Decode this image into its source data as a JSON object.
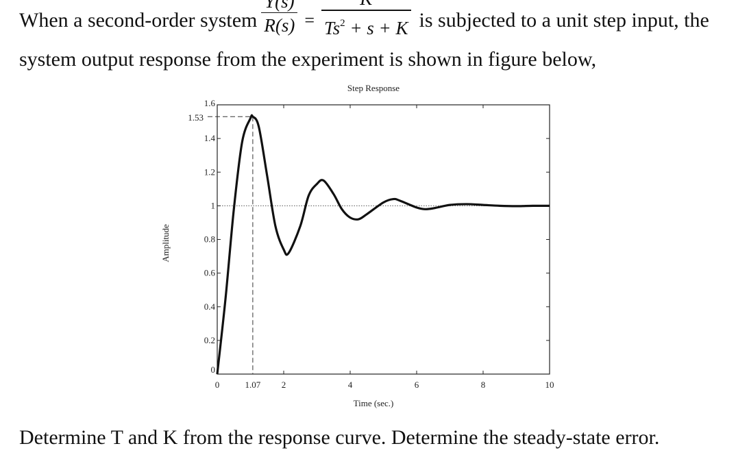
{
  "question": {
    "line1_prefix": "When a second-order system",
    "tf_lhs_num": "Y(s)",
    "tf_lhs_den": "R(s)",
    "equals": "=",
    "tf_rhs_num": "K",
    "tf_rhs_den_a": "Ts",
    "tf_rhs_den_exp": "2",
    "tf_rhs_den_b": "+ s + K",
    "line1_suffix": "is subjected to a unit step input, the",
    "line2": "system output response from the experiment is shown in figure below,",
    "line3": "Determine T and K from the response curve. Determine the steady-state error."
  },
  "chart_data": {
    "type": "line",
    "title": "Step Response",
    "xlabel": "Time (sec.)",
    "ylabel": "Amplitude",
    "xlim": [
      0,
      10
    ],
    "ylim": [
      0,
      1.6
    ],
    "xticks": [
      0,
      1.07,
      2,
      4,
      6,
      8,
      10
    ],
    "xtick_labels": [
      "0",
      "1.07",
      "2",
      "4",
      "6",
      "8",
      "10"
    ],
    "yticks": [
      0,
      0.2,
      0.4,
      0.6,
      0.8,
      1,
      1.2,
      1.4,
      1.53,
      1.6
    ],
    "ytick_labels": [
      "0",
      "0.2",
      "0.4",
      "0.6",
      "0.8",
      "1",
      "1.2",
      "1.4",
      "1.53",
      "1.6"
    ],
    "peak": {
      "x": 1.07,
      "y": 1.53
    },
    "steady_state": 1,
    "series": [
      {
        "x": [
          0,
          0.25,
          0.5,
          0.75,
          1.0,
          1.07,
          1.25,
          1.5,
          1.75,
          2.0,
          2.15,
          2.5,
          2.75,
          3.0,
          3.2,
          3.5,
          3.75,
          4.0,
          4.25,
          4.5,
          5.0,
          5.3,
          5.5,
          6.0,
          6.25,
          6.5,
          7.0,
          7.5,
          8.0,
          8.5,
          9.0,
          9.5,
          10.0
        ],
        "y": [
          0,
          0.45,
          0.98,
          1.38,
          1.52,
          1.53,
          1.47,
          1.18,
          0.88,
          0.74,
          0.72,
          0.88,
          1.06,
          1.13,
          1.15,
          1.07,
          0.98,
          0.93,
          0.92,
          0.95,
          1.02,
          1.04,
          1.03,
          0.99,
          0.98,
          0.985,
          1.005,
          1.01,
          1.005,
          1.0,
          0.998,
          1.0,
          1.0
        ]
      }
    ]
  }
}
